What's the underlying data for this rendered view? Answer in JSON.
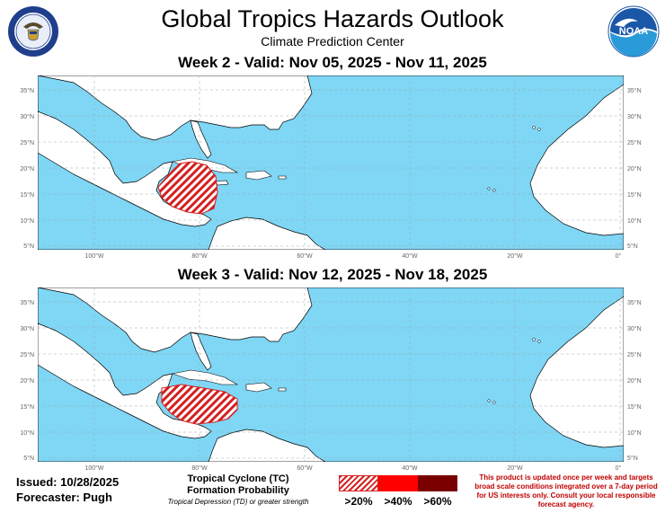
{
  "header": {
    "title": "Global Tropics Hazards Outlook",
    "subtitle": "Climate Prediction Center"
  },
  "logos": {
    "left": "us-department-of-commerce-seal",
    "right": "noaa-logo"
  },
  "maps": [
    {
      "title": "Week 2 - Valid: Nov 05, 2025 - Nov 11, 2025",
      "hazard": "Tropical cyclone formation probability >20% over western Caribbean Sea and Central America",
      "probability_category": ">20%"
    },
    {
      "title": "Week 3 - Valid: Nov 12, 2025 - Nov 18, 2025",
      "hazard": "Tropical cyclone formation probability >20% over western and central Caribbean Sea",
      "probability_category": ">20%"
    }
  ],
  "axes": {
    "lat_labels": [
      "35°N",
      "30°N",
      "25°N",
      "20°N",
      "15°N",
      "10°N",
      "5°N"
    ],
    "lon_labels": [
      "100°W",
      "80°W",
      "60°W",
      "40°W",
      "20°W",
      "0°"
    ]
  },
  "footer": {
    "issued": "Issued: 10/28/2025",
    "forecaster": "Forecaster: Pugh"
  },
  "legend": {
    "title_line1": "Tropical Cyclone (TC)",
    "title_line2": "Formation Probability",
    "note": "Tropical Depression (TD) or greater strength",
    "categories": [
      {
        "label": ">20%",
        "color": "#d42020"
      },
      {
        "label": ">40%",
        "color": "#ff0000"
      },
      {
        "label": ">60%",
        "color": "#7a0000"
      }
    ]
  },
  "disclaimer": "This product is updated once per week and targets broad scale conditions integrated over a 7-day period for US interests only. Consult your local responsible forecast agency.",
  "colors": {
    "ocean": "#7fd6f5",
    "land": "#ffffff",
    "hazard": "#d42020"
  }
}
